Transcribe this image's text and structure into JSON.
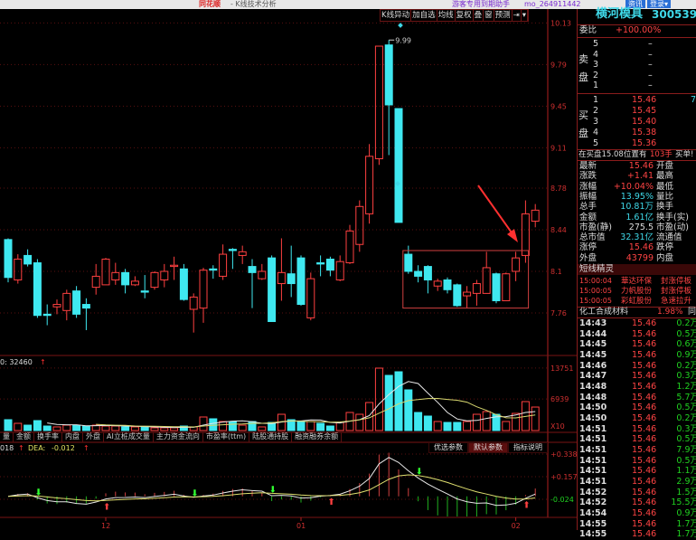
{
  "titlebar": {
    "app": "同花顺",
    "subtitle": "- K线技术分析",
    "promo": "游客专用到期助手",
    "user": "mo_264911442",
    "btn_news": "资讯",
    "btn_login": "登录▾"
  },
  "toolbar": [
    "K线异动",
    "加自选",
    "均线",
    "复权",
    "叠",
    "窗",
    "预测",
    "⇥",
    "▾"
  ],
  "colors": {
    "up": "#ff4040",
    "down": "#3fe8f0",
    "axis": "#b02020",
    "dif": "#e8e8e8",
    "dea": "#e0e070",
    "ma5": "#e8e8e8",
    "ma10": "#d8d870"
  },
  "chart_data": {
    "type": "candlestick",
    "price_ticks": [
      10.13,
      9.79,
      9.45,
      9.11,
      8.78,
      8.44,
      8.1,
      7.76
    ],
    "high_label": "9.99",
    "x_labels": [
      {
        "label": "12",
        "index": 10
      },
      {
        "label": "01",
        "index": 30
      },
      {
        "label": "02",
        "index": 52
      }
    ],
    "ohlc": [
      [
        8.36,
        8.37,
        8.01,
        8.05
      ],
      [
        8.03,
        8.24,
        8.0,
        8.2
      ],
      [
        8.23,
        8.28,
        8.14,
        8.16
      ],
      [
        8.17,
        8.2,
        7.72,
        7.74
      ],
      [
        7.75,
        7.83,
        7.66,
        7.74
      ],
      [
        7.81,
        7.87,
        7.75,
        7.83
      ],
      [
        7.78,
        7.95,
        7.7,
        7.92
      ],
      [
        7.94,
        7.98,
        7.72,
        7.75
      ],
      [
        7.83,
        7.88,
        7.62,
        7.8
      ],
      [
        7.97,
        8.16,
        7.91,
        8.06
      ],
      [
        7.99,
        8.21,
        7.99,
        8.2
      ],
      [
        8.03,
        8.17,
        7.99,
        8.09
      ],
      [
        8.09,
        8.12,
        7.92,
        7.99
      ],
      [
        7.99,
        8.06,
        7.98,
        8.02
      ],
      [
        7.94,
        8.07,
        7.88,
        7.93
      ],
      [
        7.97,
        8.1,
        7.95,
        8.09
      ],
      [
        8.03,
        8.16,
        7.97,
        8.1
      ],
      [
        8.14,
        8.22,
        8.03,
        8.15
      ],
      [
        8.12,
        8.16,
        7.86,
        7.87
      ],
      [
        7.79,
        7.92,
        7.6,
        7.89
      ],
      [
        7.8,
        8.13,
        7.68,
        8.11
      ],
      [
        8.12,
        8.15,
        8.04,
        8.11
      ],
      [
        8.06,
        8.32,
        8.03,
        8.24
      ],
      [
        8.28,
        8.29,
        8.12,
        8.27
      ],
      [
        8.23,
        8.31,
        8.16,
        8.26
      ],
      [
        8.14,
        8.2,
        7.8,
        8.09
      ],
      [
        8.04,
        8.16,
        8.03,
        8.1
      ],
      [
        8.21,
        8.23,
        7.69,
        7.69
      ],
      [
        8.0,
        8.37,
        7.86,
        8.09
      ],
      [
        8.08,
        8.31,
        7.89,
        8.0
      ],
      [
        8.21,
        8.23,
        7.82,
        7.83
      ],
      [
        7.72,
        8.09,
        7.7,
        8.04
      ],
      [
        8.17,
        8.23,
        8.06,
        8.16
      ],
      [
        8.2,
        8.22,
        8.06,
        8.11
      ],
      [
        8.03,
        8.23,
        8.02,
        8.18
      ],
      [
        8.17,
        8.48,
        8.16,
        8.43
      ],
      [
        8.32,
        8.68,
        8.26,
        8.63
      ],
      [
        8.57,
        9.14,
        8.49,
        9.04
      ],
      [
        9.02,
        9.94,
        8.97,
        9.94
      ],
      [
        9.95,
        9.99,
        9.05,
        9.46
      ],
      [
        9.43,
        9.43,
        8.5,
        8.5
      ],
      [
        8.24,
        8.31,
        8.08,
        8.1
      ],
      [
        8.1,
        8.15,
        8.01,
        8.06
      ],
      [
        8.14,
        8.15,
        7.92,
        8.03
      ],
      [
        7.98,
        8.04,
        7.94,
        8.02
      ],
      [
        8.03,
        8.05,
        7.92,
        7.95
      ],
      [
        7.99,
        8.0,
        7.81,
        7.82
      ],
      [
        7.9,
        7.98,
        7.8,
        7.93
      ],
      [
        7.92,
        8.03,
        7.82,
        8.0
      ],
      [
        7.92,
        8.26,
        7.92,
        8.13
      ],
      [
        8.08,
        8.09,
        7.84,
        7.86
      ],
      [
        7.86,
        8.09,
        7.86,
        8.08
      ],
      [
        8.1,
        8.26,
        8.02,
        8.21
      ],
      [
        8.23,
        8.68,
        8.17,
        8.57
      ],
      [
        8.51,
        8.65,
        8.46,
        8.6
      ]
    ],
    "highlight_box": {
      "from_index": 41,
      "to_index": 52,
      "price_high": 8.27,
      "price_low": 7.8
    },
    "volume": {
      "header": "0: 32460",
      "ticks": [
        "13751",
        "6939",
        "X10"
      ],
      "tick_values": [
        13751,
        6939
      ],
      "values": [
        2390,
        1590,
        1190,
        2190,
        995,
        800,
        1190,
        1190,
        995,
        1190,
        995,
        995,
        800,
        800,
        800,
        600,
        600,
        600,
        995,
        800,
        2985,
        2590,
        1990,
        1990,
        1190,
        1990,
        800,
        1790,
        3580,
        2390,
        1990,
        1990,
        1590,
        995,
        1790,
        3980,
        3580,
        6170,
        13730,
        12140,
        12935,
        8955,
        3980,
        3184,
        1990,
        1790,
        1790,
        1990,
        3580,
        4180,
        3580,
        1990,
        3780,
        6370,
        5170
      ]
    },
    "macd": {
      "header_dif": "018",
      "header_dea_label": "DEA:",
      "header_dea": "-0.012",
      "ticks": [
        "+0.338",
        "+0.157",
        "-0.024"
      ],
      "tick_values": [
        0.338,
        0.157,
        -0.024
      ]
    }
  },
  "tabs": [
    "量",
    "金额",
    "换手率",
    "内盘",
    "外盘",
    "AI立桩成交量",
    "主力资金流向",
    "市盈率(ttm)",
    "陆股通持股",
    "融资融券余额"
  ],
  "param_buttons": [
    {
      "label": "优选参数",
      "selected": false
    },
    {
      "label": "默认参数",
      "selected": true
    },
    {
      "label": "指标说明",
      "selected": false
    }
  ],
  "quote": {
    "name": "横河模具",
    "code": "300539",
    "weibi_label": "委比",
    "weibi": "+100.00%",
    "sell_label_top": "卖",
    "sell_label_bottom": "盘",
    "sell": [
      {
        "n": "5",
        "p": "–"
      },
      {
        "n": "4",
        "p": "–"
      },
      {
        "n": "3",
        "p": "–"
      },
      {
        "n": "2",
        "p": "–"
      },
      {
        "n": "1",
        "p": "–"
      }
    ],
    "buy_label_top": "买",
    "buy_label_bottom": "盘",
    "buy": [
      {
        "n": "1",
        "p": "15.46",
        "v": "7"
      },
      {
        "n": "2",
        "p": "15.45"
      },
      {
        "n": "3",
        "p": "15.40"
      },
      {
        "n": "4",
        "p": "15.38"
      },
      {
        "n": "5",
        "p": "15.36"
      }
    ],
    "notice": "在买盘15.08位置有",
    "notice_qty": "103手",
    "notice_tail": "买单!",
    "stats": [
      {
        "l": "最新",
        "v": "15.46",
        "c": "red",
        "r": "开盘"
      },
      {
        "l": "涨跌",
        "v": "+1.41",
        "c": "red",
        "r": "最高"
      },
      {
        "l": "涨幅",
        "v": "+10.04%",
        "c": "red",
        "r": "最低"
      },
      {
        "l": "振幅",
        "v": "13.95%",
        "c": "cyan",
        "r": "量比"
      },
      {
        "l": "总手",
        "v": "10.81万",
        "c": "cyan",
        "r": "换手"
      },
      {
        "l": "金额",
        "v": "1.61亿",
        "c": "cyan",
        "r": "换手(实)"
      },
      {
        "l": "市盈(静)",
        "v": "275.5",
        "c": "white",
        "r": "市盈(动)"
      },
      {
        "l": "总市值",
        "v": "32.31亿",
        "c": "cyan",
        "r": "流通值"
      },
      {
        "l": "涨停",
        "v": "15.46",
        "c": "red",
        "r": "跌停"
      },
      {
        "l": "外盘",
        "v": "43799",
        "c": "red",
        "r": "内盘"
      }
    ],
    "sprite_title": "短线精灵",
    "sprite": [
      {
        "t": "15:00:04",
        "s": "華达环保",
        "e": "封涨停板"
      },
      {
        "t": "15:00:05",
        "s": "力帆股份",
        "e": "封涨停板"
      },
      {
        "t": "15:00:05",
        "s": "彩虹股份",
        "e": "急速拉升"
      }
    ],
    "sector": "化工合成材料",
    "sector_pct": "1.98%",
    "sector_tail": "同",
    "trades": [
      [
        "14:43",
        "15.46",
        "0.2万"
      ],
      [
        "14:44",
        "15.46",
        "0.5万"
      ],
      [
        "14:45",
        "15.46",
        "0.6万"
      ],
      [
        "14:45",
        "15.46",
        "0.9万"
      ],
      [
        "14:46",
        "15.46",
        "0.2万"
      ],
      [
        "14:47",
        "15.46",
        "0.3万"
      ],
      [
        "14:48",
        "15.46",
        "1.2万"
      ],
      [
        "14:48",
        "15.46",
        "5.7万"
      ],
      [
        "14:50",
        "15.46",
        "0.5万"
      ],
      [
        "14:50",
        "15.46",
        "0.2万"
      ],
      [
        "14:51",
        "15.46",
        "0.3万"
      ],
      [
        "14:51",
        "15.46",
        "0.5万"
      ],
      [
        "14:51",
        "15.46",
        "7.9万"
      ],
      [
        "14:51",
        "15.46",
        "0.5万"
      ],
      [
        "14:51",
        "15.46",
        "1.1万"
      ],
      [
        "14:51",
        "15.46",
        "2.9万"
      ],
      [
        "14:52",
        "15.46",
        "1.5万"
      ],
      [
        "14:52",
        "15.46",
        "15.5万"
      ],
      [
        "14:54",
        "15.46",
        "0.9万"
      ],
      [
        "14:55",
        "15.46",
        "1.7万"
      ],
      [
        "14:55",
        "15.46",
        "1.7万"
      ]
    ]
  }
}
